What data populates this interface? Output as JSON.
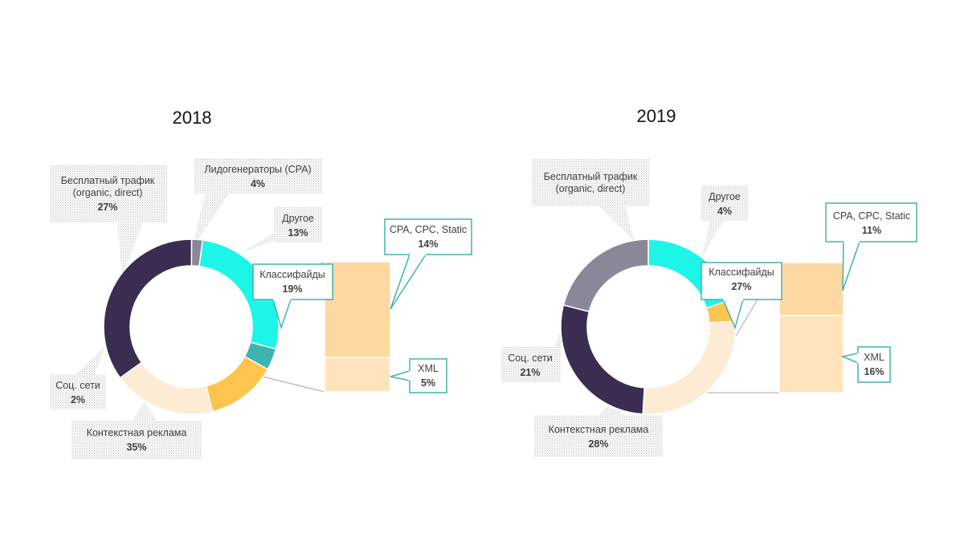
{
  "chart_data": [
    {
      "type": "pie",
      "variant": "bar-of-pie",
      "title": "2018",
      "colors": {
        "free": "#1df5e8",
        "leadgen": "#3fb3b1",
        "other": "#ffc44d",
        "classifieds": "#fdebd3",
        "context": "#3a2d51",
        "social": "#8a8799"
      },
      "slices": [
        {
          "key": "free",
          "label": "Бесплатный трафик\n(organic, direct)",
          "value": 27,
          "value_label": "27%"
        },
        {
          "key": "leadgen",
          "label": "Лидогенераторы (CPA)",
          "value": 4,
          "value_label": "4%"
        },
        {
          "key": "other",
          "label": "Другое",
          "value": 13,
          "value_label": "13%"
        },
        {
          "key": "classifieds",
          "label": "Классифайды",
          "value": 19,
          "value_label": "19%"
        },
        {
          "key": "context",
          "label": "Контекстная реклама",
          "value": 35,
          "value_label": "35%"
        },
        {
          "key": "social",
          "label": "Соц. сети",
          "value": 2,
          "value_label": "2%"
        }
      ],
      "breakdown": {
        "of": "Классифайды",
        "items": [
          {
            "label": "CPA, CPC, Static",
            "value": 14,
            "value_label": "14%",
            "color": "#fdd8a0"
          },
          {
            "label": "XML",
            "value": 5,
            "value_label": "5%",
            "color": "#fee3bd"
          }
        ]
      }
    },
    {
      "type": "pie",
      "variant": "bar-of-pie",
      "title": "2019",
      "colors": {
        "free": "#1df5e8",
        "other": "#ffc44d",
        "classifieds": "#fdebd3",
        "context": "#3a2d51",
        "social": "#8a8799"
      },
      "slices": [
        {
          "key": "free",
          "label": "Бесплатный трафик\n(organic, direct)",
          "value": 20,
          "value_label": ""
        },
        {
          "key": "other",
          "label": "Другое",
          "value": 4,
          "value_label": "4%"
        },
        {
          "key": "classifieds",
          "label": "Классифайды",
          "value": 27,
          "value_label": "27%"
        },
        {
          "key": "context",
          "label": "Контекстная реклама",
          "value": 28,
          "value_label": "28%"
        },
        {
          "key": "social",
          "label": "Соц. сети",
          "value": 21,
          "value_label": "21%"
        }
      ],
      "breakdown": {
        "of": "Классифайды",
        "items": [
          {
            "label": "CPA, CPC, Static",
            "value": 11,
            "value_label": "11%",
            "color": "#fdd8a0"
          },
          {
            "label": "XML",
            "value": 16,
            "value_label": "16%",
            "color": "#fee3bd"
          }
        ]
      }
    }
  ]
}
